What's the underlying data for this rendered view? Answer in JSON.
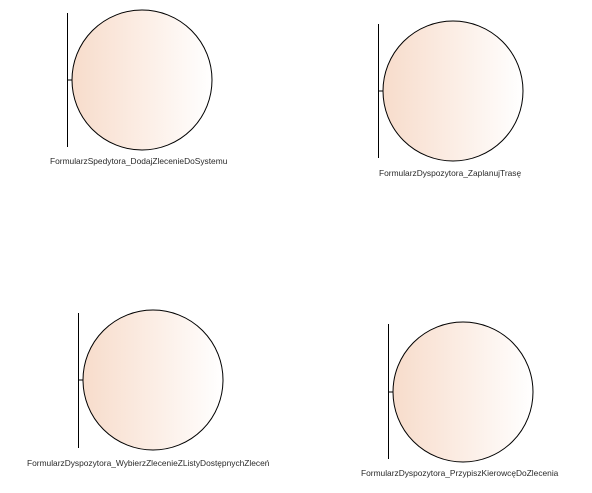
{
  "diagram": {
    "type": "uml-boundary-objects",
    "colors": {
      "fill_light": "#ffffff",
      "fill_tint": "#f7dccb",
      "stroke": "#000000",
      "text": "#2a2a2a"
    },
    "boundaries": [
      {
        "id": "b1",
        "label": "FormularzSpedytora_DodajZlecenieDoSystemu"
      },
      {
        "id": "b2",
        "label": "FormularzDyspozytora_ZaplanujTrasę"
      },
      {
        "id": "b3",
        "label": "FormularzDyspozytora_WybierzZlecenieZListyDostępnychZleceń"
      },
      {
        "id": "b4",
        "label": "FormularzDyspozytora_PrzypiszKierowcęDoZlecenia"
      }
    ]
  }
}
